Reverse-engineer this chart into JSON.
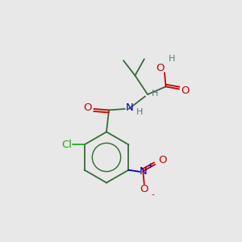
{
  "background_color": "#e8e8e8",
  "bond_color": "#3a6b3a",
  "O_color": "#cc0000",
  "N_color": "#0000bb",
  "Cl_color": "#22aa22",
  "H_color": "#5a7a7a",
  "fs": 9.5,
  "sfs": 8.0,
  "lw": 1.3,
  "xlim": [
    0,
    8
  ],
  "ylim": [
    0,
    10
  ]
}
